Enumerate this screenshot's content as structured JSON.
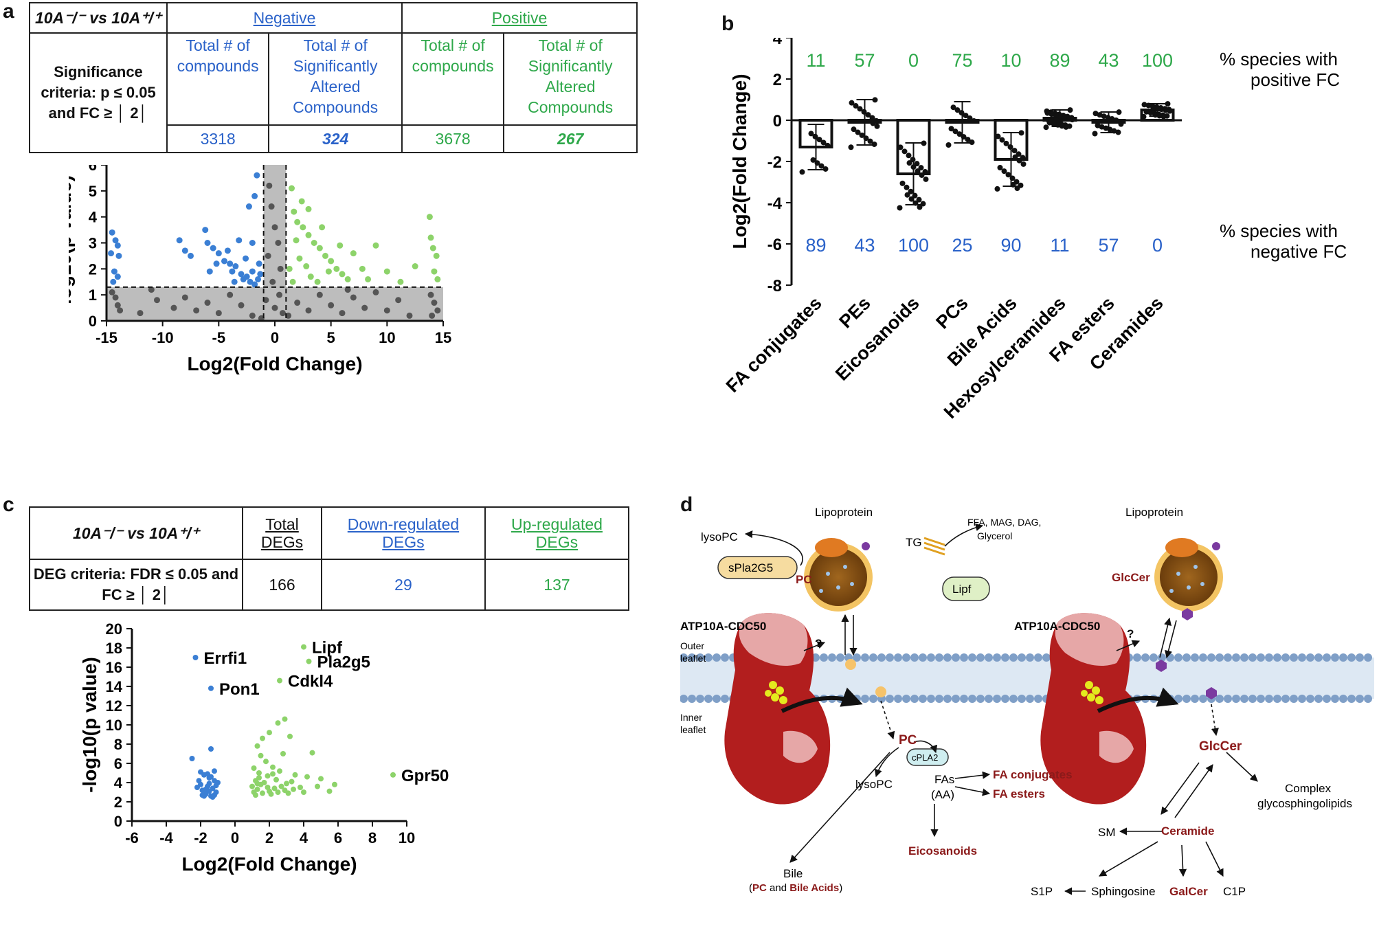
{
  "panels": {
    "a": "a",
    "b": "b",
    "c": "c",
    "d": "d"
  },
  "table_a": {
    "corner": "10A⁻/⁻ vs 10A⁺/⁺",
    "negative": "Negative",
    "positive": "Positive",
    "criteria": "Significance criteria: p ≤ 0.05 and FC ≥ │ 2│",
    "col_total": "Total # of compounds",
    "col_sig": "Total # of Significantly Altered Compounds",
    "neg_total": "3318",
    "neg_sig": "324",
    "pos_total": "3678",
    "pos_sig": "267"
  },
  "table_c": {
    "corner": "10A⁻/⁻ vs 10A⁺/⁺",
    "total_header": "Total DEGs",
    "down_header": "Down-regulated DEGs",
    "up_header": "Up-regulated DEGs",
    "criteria": "DEG criteria: FDR ≤ 0.05 and FC ≥ │ 2│",
    "total": "166",
    "down": "29",
    "up": "137"
  },
  "colors": {
    "blue": "#2a62c9",
    "green": "#2ea84a",
    "scatter_blue": "#3b7fd4",
    "scatter_green": "#8dd36a",
    "gray": "#555555",
    "dark_red": "#8b1a1a"
  },
  "chart_data": [
    {
      "id": "a",
      "type": "scatter",
      "title": "",
      "xlabel": "Log2(Fold Change)",
      "ylabel": "-log10(p value)",
      "xlim": [
        -15,
        15
      ],
      "ylim": [
        0,
        6
      ],
      "xticks": [
        -15,
        -10,
        -5,
        0,
        5,
        10,
        15
      ],
      "yticks": [
        0,
        1,
        2,
        3,
        4,
        5,
        6
      ],
      "thresholds": {
        "x": [
          -1,
          1
        ],
        "y": 1.3
      },
      "series": [
        {
          "name": "Negative (significant)",
          "color": "blue",
          "points": [
            [
              -14.5,
              3.4
            ],
            [
              -14.2,
              3.1
            ],
            [
              -14.0,
              2.9
            ],
            [
              -14.6,
              2.6
            ],
            [
              -13.9,
              2.5
            ],
            [
              -14.3,
              1.9
            ],
            [
              -14.0,
              1.7
            ],
            [
              -14.4,
              1.5
            ],
            [
              -8.5,
              3.1
            ],
            [
              -8.0,
              2.7
            ],
            [
              -7.5,
              2.5
            ],
            [
              -6.2,
              3.5
            ],
            [
              -6.0,
              3.0
            ],
            [
              -5.5,
              2.8
            ],
            [
              -5.0,
              2.6
            ],
            [
              -4.5,
              2.3
            ],
            [
              -4.0,
              2.2
            ],
            [
              -3.8,
              1.9
            ],
            [
              -3.5,
              2.1
            ],
            [
              -3.0,
              1.8
            ],
            [
              -2.8,
              1.6
            ],
            [
              -2.5,
              1.7
            ],
            [
              -2.2,
              1.5
            ],
            [
              -2.0,
              1.9
            ],
            [
              -1.8,
              1.4
            ],
            [
              -1.5,
              1.6
            ],
            [
              -1.4,
              2.2
            ],
            [
              -1.6,
              5.6
            ],
            [
              -1.8,
              4.8
            ],
            [
              -2.3,
              4.4
            ],
            [
              -3.2,
              3.1
            ],
            [
              -4.2,
              2.7
            ],
            [
              -5.2,
              2.2
            ],
            [
              -3.6,
              1.5
            ],
            [
              -2.6,
              2.4
            ],
            [
              -1.3,
              1.8
            ],
            [
              -2.0,
              3.0
            ],
            [
              -5.8,
              1.9
            ]
          ]
        },
        {
          "name": "Positive (significant)",
          "color": "green",
          "points": [
            [
              1.5,
              5.1
            ],
            [
              1.7,
              4.2
            ],
            [
              2.0,
              3.8
            ],
            [
              2.5,
              3.6
            ],
            [
              3.0,
              3.3
            ],
            [
              3.5,
              3.0
            ],
            [
              4.0,
              2.8
            ],
            [
              4.5,
              2.5
            ],
            [
              5.0,
              2.3
            ],
            [
              5.5,
              2.0
            ],
            [
              6.0,
              1.8
            ],
            [
              6.5,
              1.6
            ],
            [
              7.0,
              2.6
            ],
            [
              7.8,
              2.0
            ],
            [
              9.0,
              2.9
            ],
            [
              10.0,
              1.9
            ],
            [
              11.2,
              1.5
            ],
            [
              12.5,
              2.1
            ],
            [
              13.8,
              4.0
            ],
            [
              13.9,
              3.2
            ],
            [
              14.1,
              2.8
            ],
            [
              14.4,
              2.5
            ],
            [
              14.2,
              1.9
            ],
            [
              14.5,
              1.6
            ],
            [
              1.3,
              2.0
            ],
            [
              1.6,
              1.5
            ],
            [
              2.2,
              2.4
            ],
            [
              2.8,
              2.1
            ],
            [
              3.2,
              1.7
            ],
            [
              3.8,
              1.5
            ],
            [
              4.8,
              1.9
            ],
            [
              5.8,
              2.9
            ],
            [
              2.4,
              4.6
            ],
            [
              3.0,
              4.3
            ],
            [
              1.9,
              3.1
            ],
            [
              4.2,
              3.6
            ],
            [
              8.3,
              1.6
            ]
          ]
        },
        {
          "name": "Not significant",
          "color": "gray",
          "points": [
            [
              -14.5,
              1.1
            ],
            [
              -14.2,
              0.9
            ],
            [
              -14.0,
              0.6
            ],
            [
              -13.8,
              0.4
            ],
            [
              -12,
              0.3
            ],
            [
              -10.5,
              0.8
            ],
            [
              -9,
              0.5
            ],
            [
              -8,
              0.9
            ],
            [
              -7,
              0.4
            ],
            [
              -6,
              0.7
            ],
            [
              -5,
              0.3
            ],
            [
              -4,
              1.0
            ],
            [
              -3,
              0.6
            ],
            [
              -2,
              0.2
            ],
            [
              -0.5,
              5.2
            ],
            [
              -0.3,
              4.4
            ],
            [
              0.0,
              3.6
            ],
            [
              0.3,
              3.0
            ],
            [
              -0.6,
              2.5
            ],
            [
              0.5,
              2.0
            ],
            [
              -0.2,
              1.5
            ],
            [
              0.4,
              1.0
            ],
            [
              0.0,
              0.5
            ],
            [
              -0.8,
              0.8
            ],
            [
              0.7,
              0.3
            ],
            [
              2,
              0.7
            ],
            [
              3,
              0.4
            ],
            [
              4,
              1.0
            ],
            [
              5,
              0.6
            ],
            [
              6,
              0.3
            ],
            [
              7,
              0.9
            ],
            [
              8,
              0.5
            ],
            [
              9,
              1.1
            ],
            [
              10,
              0.4
            ],
            [
              11,
              0.8
            ],
            [
              12,
              0.2
            ],
            [
              13.9,
              1.0
            ],
            [
              14.2,
              0.7
            ],
            [
              14.5,
              0.4
            ],
            [
              14.0,
              0.2
            ],
            [
              -11,
              1.2
            ],
            [
              6.5,
              1.2
            ],
            [
              -1.2,
              0.1
            ],
            [
              1.2,
              0.2
            ]
          ]
        }
      ]
    },
    {
      "id": "b",
      "type": "bar",
      "title": "",
      "ylabel": "Log2(Fold Change)",
      "ylim": [
        -8,
        4
      ],
      "yticks": [
        -8,
        -6,
        -4,
        -2,
        0,
        2,
        4
      ],
      "categories": [
        "FA conjugates",
        "PEs",
        "Eicosanoids",
        "PCs",
        "Bile Acids",
        "Hexosylceramides",
        "FA esters",
        "Ceramides"
      ],
      "values": [
        -1.3,
        -0.1,
        -2.6,
        -0.1,
        -1.9,
        0.1,
        -0.1,
        0.5
      ],
      "errors": [
        1.1,
        1.1,
        1.5,
        1.0,
        1.3,
        0.4,
        0.5,
        0.3
      ],
      "pct_positive": [
        "11",
        "57",
        "0",
        "75",
        "10",
        "89",
        "43",
        "100"
      ],
      "pct_negative": [
        "89",
        "43",
        "100",
        "25",
        "90",
        "11",
        "57",
        "0"
      ],
      "right_label_pos": "% species with positive FC",
      "right_label_neg": "% species with negative FC"
    },
    {
      "id": "c",
      "type": "scatter",
      "title": "",
      "xlabel": "Log2(Fold Change)",
      "ylabel": "-log10(p value)",
      "xlim": [
        -6,
        10
      ],
      "ylim": [
        0,
        20
      ],
      "xticks": [
        -6,
        -4,
        -2,
        0,
        2,
        4,
        6,
        8,
        10
      ],
      "yticks": [
        0,
        2,
        4,
        6,
        8,
        10,
        12,
        14,
        16,
        18,
        20
      ],
      "labels": [
        {
          "text": "Errfi1",
          "x": -2.3,
          "y": 17.0
        },
        {
          "text": "Pon1",
          "x": -1.4,
          "y": 13.8
        },
        {
          "text": "Lipf",
          "x": 4.0,
          "y": 18.1
        },
        {
          "text": "Pla2g5",
          "x": 4.3,
          "y": 16.6
        },
        {
          "text": "Cdkl4",
          "x": 2.6,
          "y": 14.6
        },
        {
          "text": "Gpr50",
          "x": 9.2,
          "y": 4.8
        }
      ],
      "series": [
        {
          "name": "Down-regulated",
          "color": "blue",
          "points": [
            [
              -2.3,
              17.0
            ],
            [
              -1.4,
              13.8
            ],
            [
              -2.5,
              6.5
            ],
            [
              -1.4,
              7.5
            ],
            [
              -2.0,
              5.1
            ],
            [
              -1.8,
              4.8
            ],
            [
              -1.5,
              4.5
            ],
            [
              -1.2,
              4.2
            ],
            [
              -2.0,
              3.8
            ],
            [
              -1.6,
              3.6
            ],
            [
              -1.3,
              3.4
            ],
            [
              -1.9,
              3.2
            ],
            [
              -1.1,
              3.0
            ],
            [
              -1.7,
              2.8
            ],
            [
              -1.4,
              2.6
            ],
            [
              -2.1,
              4.2
            ],
            [
              -1.0,
              4.0
            ],
            [
              -1.5,
              3.1
            ],
            [
              -1.2,
              5.2
            ],
            [
              -1.8,
              2.6
            ],
            [
              -1.3,
              2.5
            ],
            [
              -2.2,
              3.5
            ],
            [
              -1.6,
              4.9
            ],
            [
              -1.1,
              3.7
            ],
            [
              -1.9,
              2.7
            ],
            [
              -1.5,
              3.9
            ],
            [
              -1.2,
              2.7
            ],
            [
              -1.7,
              3.3
            ],
            [
              -1.4,
              4.6
            ]
          ]
        },
        {
          "name": "Up-regulated",
          "color": "green",
          "points": [
            [
              4.0,
              18.1
            ],
            [
              4.3,
              16.6
            ],
            [
              2.6,
              14.6
            ],
            [
              9.2,
              4.8
            ],
            [
              2.9,
              10.6
            ],
            [
              2.5,
              10.2
            ],
            [
              2.0,
              9.2
            ],
            [
              1.6,
              8.6
            ],
            [
              3.2,
              8.8
            ],
            [
              1.3,
              7.8
            ],
            [
              2.8,
              7.0
            ],
            [
              4.5,
              7.1
            ],
            [
              1.8,
              6.2
            ],
            [
              2.2,
              5.6
            ],
            [
              1.4,
              5.0
            ],
            [
              2.6,
              5.2
            ],
            [
              3.5,
              4.8
            ],
            [
              4.2,
              4.6
            ],
            [
              5.0,
              4.4
            ],
            [
              5.8,
              3.8
            ],
            [
              1.2,
              4.2
            ],
            [
              1.5,
              3.8
            ],
            [
              1.9,
              3.5
            ],
            [
              2.3,
              3.4
            ],
            [
              2.7,
              3.6
            ],
            [
              3.0,
              3.9
            ],
            [
              3.4,
              3.3
            ],
            [
              3.8,
              3.5
            ],
            [
              4.8,
              3.6
            ],
            [
              5.5,
              3.1
            ],
            [
              1.1,
              3.0
            ],
            [
              1.3,
              3.3
            ],
            [
              1.7,
              4.0
            ],
            [
              2.0,
              3.1
            ],
            [
              2.4,
              4.3
            ],
            [
              2.9,
              3.2
            ],
            [
              3.3,
              4.1
            ],
            [
              1.2,
              2.7
            ],
            [
              1.6,
              2.9
            ],
            [
              2.1,
              2.8
            ],
            [
              2.5,
              3.0
            ],
            [
              1.0,
              3.6
            ],
            [
              1.4,
              4.5
            ],
            [
              1.9,
              4.7
            ],
            [
              3.1,
              2.9
            ],
            [
              4.0,
              3.0
            ],
            [
              1.1,
              5.5
            ],
            [
              1.5,
              6.8
            ],
            [
              2.2,
              4.9
            ],
            [
              1.3,
              3.9
            ]
          ]
        }
      ]
    }
  ],
  "diagram_d": {
    "lipoprotein": "Lipoprotein",
    "lysopc": "lysoPC",
    "spla2g5": "sPla2G5",
    "pc": "PC",
    "tg": "TG",
    "ffa": "FFA, MAG, DAG,",
    "glycerol": "Glycerol",
    "lipf": "Lipf",
    "glccer": "GlcCer",
    "atp_left": "ATP10A-CDC50",
    "atp_right": "ATP10A-CDC50",
    "outer": "Outer",
    "outer2": "leaflet",
    "inner": "Inner",
    "inner2": "leaflet",
    "question": "?",
    "pc_inner": "PC",
    "cpla2": "cPLA2",
    "lysopc2": "lysoPC",
    "fas": "FAs",
    "aa": "(AA)",
    "fa_conj": "FA conjugates",
    "fa_esters": "FA esters",
    "eicosanoids": "Eicosanoids",
    "bile": "Bile",
    "bile_pc": "PC",
    "bile_and": "and",
    "bile_ba": "Bile Acids",
    "glccer_inner": "GlcCer",
    "complex1": "Complex",
    "complex2": "glycosphingolipids",
    "ceramide": "Ceramide",
    "sm": "SM",
    "s1p": "S1P",
    "sphingosine": "Sphingosine",
    "galcer": "GalCer",
    "c1p": "C1P"
  }
}
